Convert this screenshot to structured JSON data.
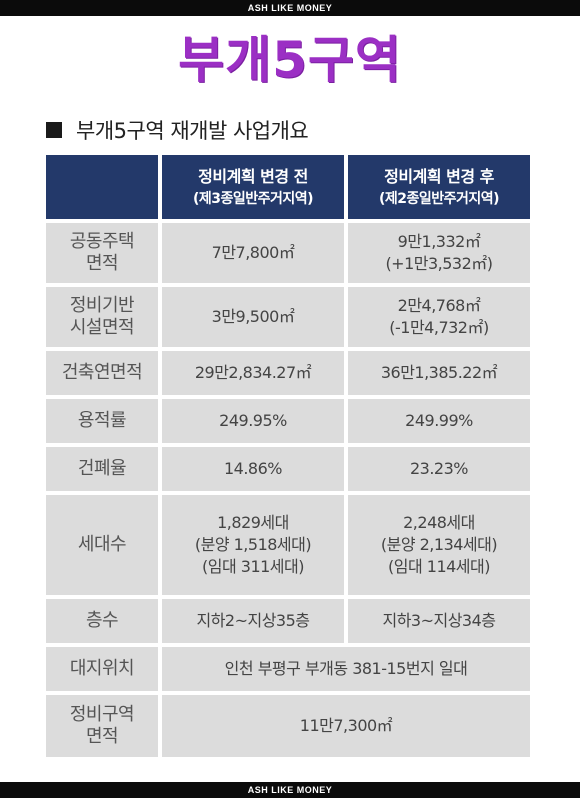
{
  "brand_top": "ASH LIKE MONEY",
  "brand_bottom": "ASH LIKE MONEY",
  "title": "부개5구역",
  "subheading": "부개5구역 재개발 사업개요",
  "table": {
    "header": {
      "before_line1": "정비계획 변경 전",
      "before_line2": "(제3종일반주거지역)",
      "after_line1": "정비계획 변경 후",
      "after_line2": "(제2종일반주거지역)"
    },
    "rows": [
      {
        "label1": "공동주택",
        "label2": "면적",
        "before1": "7만7,800㎡",
        "after1": "9만1,332㎡",
        "after2": "(+1만3,532㎡)"
      },
      {
        "label1": "정비기반",
        "label2": "시설면적",
        "before1": "3만9,500㎡",
        "after1": "2만4,768㎡",
        "after2": "(-1만4,732㎡)"
      },
      {
        "label1": "건축연면적",
        "before1": "29만2,834.27㎡",
        "after1": "36만1,385.22㎡"
      },
      {
        "label1": "용적률",
        "before1": "249.95%",
        "after1": "249.99%"
      },
      {
        "label1": "건폐율",
        "before1": "14.86%",
        "after1": "23.23%"
      },
      {
        "label1": "세대수",
        "before1": "1,829세대",
        "before2": "(분양 1,518세대)",
        "before3": "(임대 311세대)",
        "after1": "2,248세대",
        "after2": "(분양 2,134세대)",
        "after3": "(임대 114세대)"
      },
      {
        "label1": "층수",
        "before1": "지하2~지상35층",
        "after1": "지하3~지상34층"
      },
      {
        "label1": "대지위치",
        "merged": "인천 부평구 부개동 381-15번지 일대"
      },
      {
        "label1": "정비구역",
        "label2": "면적",
        "merged": "11만7,300㎡"
      }
    ]
  }
}
